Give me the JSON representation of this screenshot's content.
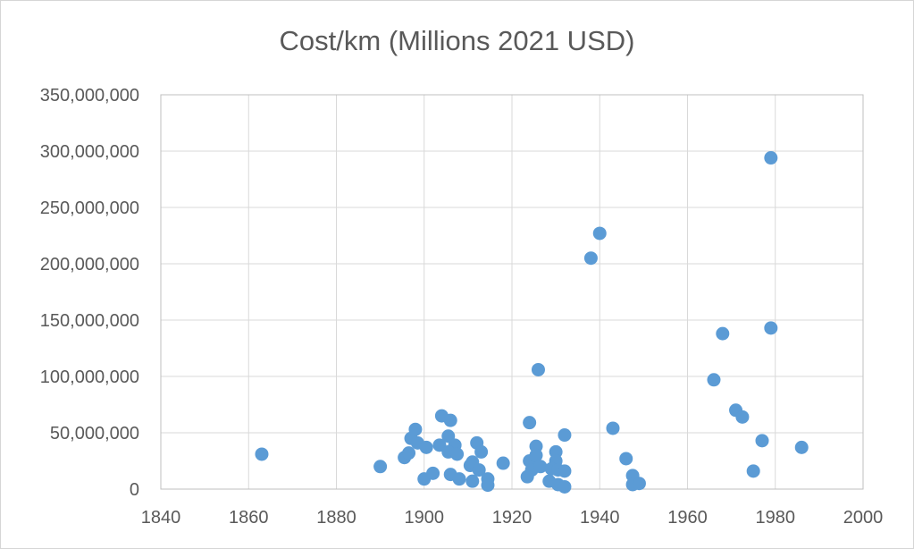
{
  "window": {
    "background_color": "#FFFFFF",
    "frame_border_color": "#D6D6D6"
  },
  "chart_data": {
    "type": "scatter",
    "title": "Cost/km (Millions 2021 USD)",
    "xlabel": "",
    "ylabel": "",
    "legend": "none",
    "grid": true,
    "xlim": [
      1840,
      2000
    ],
    "ylim": [
      0,
      350000000
    ],
    "x_ticks": [
      1840,
      1860,
      1880,
      1900,
      1920,
      1940,
      1960,
      1980,
      2000
    ],
    "x_tick_labels": [
      "1840",
      "1860",
      "1880",
      "1900",
      "1920",
      "1940",
      "1960",
      "1980",
      "2000"
    ],
    "y_ticks": [
      0,
      50000000,
      100000000,
      150000000,
      200000000,
      250000000,
      300000000,
      350000000
    ],
    "y_tick_labels": [
      "0",
      "50,000,000",
      "100,000,000",
      "150,000,000",
      "200,000,000",
      "250,000,000",
      "300,000,000",
      "350,000,000"
    ],
    "marker_color": "#5B9BD5",
    "marker_radius_px": 7.5,
    "gridline_color": "#D9D9D9",
    "axis_line_color": "#BFBFBF",
    "tick_label_color": "#595959",
    "title_color": "#595959",
    "points": [
      [
        1863,
        31000000
      ],
      [
        1890,
        20000000
      ],
      [
        1895.5,
        28000000
      ],
      [
        1896.5,
        32000000
      ],
      [
        1897,
        45000000
      ],
      [
        1898,
        53000000
      ],
      [
        1898.5,
        41000000
      ],
      [
        1900.5,
        37000000
      ],
      [
        1900,
        9000000
      ],
      [
        1902,
        14000000
      ],
      [
        1904,
        65000000
      ],
      [
        1906,
        61000000
      ],
      [
        1905.5,
        47000000
      ],
      [
        1903.5,
        39000000
      ],
      [
        1907,
        39000000
      ],
      [
        1905.5,
        33000000
      ],
      [
        1907.5,
        31000000
      ],
      [
        1906,
        13000000
      ],
      [
        1908,
        9000000
      ],
      [
        1910.5,
        21000000
      ],
      [
        1911,
        24000000
      ],
      [
        1912,
        41000000
      ],
      [
        1913,
        33000000
      ],
      [
        1912.5,
        17000000
      ],
      [
        1911,
        7000000
      ],
      [
        1914.5,
        9000000
      ],
      [
        1914.5,
        3500000
      ],
      [
        1918,
        23000000
      ],
      [
        1924,
        59000000
      ],
      [
        1926,
        106000000
      ],
      [
        1925.5,
        38000000
      ],
      [
        1924,
        25000000
      ],
      [
        1925.5,
        30000000
      ],
      [
        1924.5,
        17000000
      ],
      [
        1926.5,
        20000000
      ],
      [
        1923.5,
        11000000
      ],
      [
        1930,
        33000000
      ],
      [
        1930,
        25000000
      ],
      [
        1929,
        18000000
      ],
      [
        1930.5,
        17000000
      ],
      [
        1932,
        16000000
      ],
      [
        1928.5,
        7000000
      ],
      [
        1930.5,
        4000000
      ],
      [
        1932,
        2000000
      ],
      [
        1932,
        48000000
      ],
      [
        1938,
        205000000
      ],
      [
        1940,
        227000000
      ],
      [
        1943,
        54000000
      ],
      [
        1946,
        27000000
      ],
      [
        1947.5,
        12000000
      ],
      [
        1947.5,
        4000000
      ],
      [
        1949,
        5000000
      ],
      [
        1966,
        97000000
      ],
      [
        1968,
        138000000
      ],
      [
        1971,
        70000000
      ],
      [
        1972.5,
        64000000
      ],
      [
        1975,
        16000000
      ],
      [
        1977,
        43000000
      ],
      [
        1979,
        294000000
      ],
      [
        1979,
        143000000
      ],
      [
        1986,
        37000000
      ]
    ]
  }
}
